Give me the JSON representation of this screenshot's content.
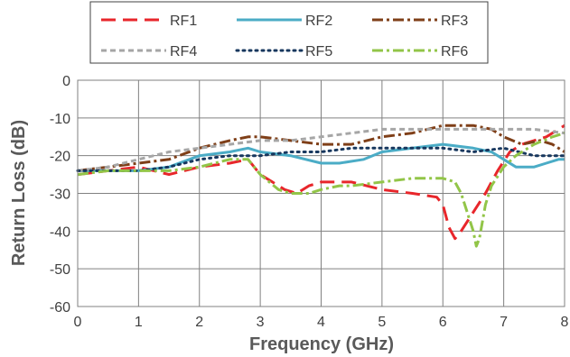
{
  "chart_data": {
    "type": "line",
    "title": "",
    "xlabel": "Frequency (GHz)",
    "ylabel": "Return Loss (dB)",
    "xlim": [
      0,
      8
    ],
    "ylim": [
      -60,
      0
    ],
    "xticks": [
      "0",
      "1",
      "2",
      "3",
      "4",
      "5",
      "6",
      "7",
      "8"
    ],
    "yticks": [
      "0",
      "-10",
      "-20",
      "-30",
      "-40",
      "-50",
      "-60"
    ],
    "grid": true,
    "legend_position": "top",
    "series": [
      {
        "name": "RF1",
        "color": "#e8262b",
        "dash": "long-dash",
        "x": [
          0,
          0.5,
          1,
          1.5,
          2,
          2.5,
          2.8,
          3.0,
          3.2,
          3.4,
          3.6,
          3.8,
          4.0,
          4.2,
          4.5,
          5.0,
          5.5,
          5.9,
          6.0,
          6.1,
          6.2,
          6.3,
          6.5,
          6.7,
          6.9,
          7.1,
          7.3,
          7.5,
          7.7,
          7.9,
          8.0
        ],
        "y": [
          -25,
          -24,
          -23,
          -25,
          -23,
          -22,
          -21,
          -25,
          -27,
          -29,
          -30,
          -28,
          -27,
          -27,
          -27,
          -29,
          -30,
          -31,
          -33,
          -39,
          -42,
          -40,
          -35,
          -30,
          -24,
          -19,
          -17,
          -16,
          -15,
          -13,
          -12
        ]
      },
      {
        "name": "RF2",
        "color": "#4bacc6",
        "dash": "solid",
        "x": [
          0,
          0.5,
          1,
          1.5,
          2,
          2.5,
          2.8,
          3.0,
          3.5,
          4.0,
          4.3,
          4.7,
          5.0,
          5.5,
          6.0,
          6.5,
          6.8,
          7.0,
          7.2,
          7.5,
          7.7,
          7.9,
          8.0
        ],
        "y": [
          -24,
          -24,
          -24,
          -23,
          -20,
          -19,
          -18,
          -19,
          -20,
          -22,
          -22,
          -21,
          -19,
          -18,
          -17,
          -18,
          -19,
          -21,
          -23,
          -23,
          -22,
          -21,
          -21
        ]
      },
      {
        "name": "RF3",
        "color": "#7f3f18",
        "dash": "dash-dot",
        "x": [
          0,
          0.5,
          1,
          1.5,
          2,
          2.5,
          2.8,
          3.0,
          3.5,
          4.0,
          4.5,
          5.0,
          5.5,
          6.0,
          6.5,
          6.8,
          7.0,
          7.3,
          7.6,
          7.8,
          8.0
        ],
        "y": [
          -24,
          -23,
          -22,
          -21,
          -18,
          -16,
          -15,
          -15,
          -16,
          -17,
          -17,
          -15,
          -14,
          -12,
          -12,
          -13,
          -15,
          -17,
          -16,
          -17,
          -19
        ]
      },
      {
        "name": "RF4",
        "color": "#a6a6a6",
        "dash": "short-dash",
        "x": [
          0,
          0.5,
          1,
          1.5,
          2,
          2.5,
          3.0,
          3.5,
          4.0,
          4.5,
          5.0,
          5.5,
          6.0,
          6.5,
          7.0,
          7.5,
          8.0
        ],
        "y": [
          -24,
          -23,
          -21,
          -19,
          -18,
          -17,
          -16,
          -16,
          -15,
          -14,
          -13,
          -13,
          -13,
          -13,
          -13,
          -13,
          -14
        ]
      },
      {
        "name": "RF5",
        "color": "#17375e",
        "dash": "dot",
        "x": [
          0,
          0.5,
          1,
          1.5,
          2,
          2.5,
          3.0,
          3.5,
          4.0,
          4.5,
          5.0,
          5.5,
          6.0,
          6.5,
          7.0,
          7.5,
          8.0
        ],
        "y": [
          -24,
          -24,
          -24,
          -23,
          -21,
          -20,
          -20,
          -19,
          -19,
          -18,
          -18,
          -18,
          -18,
          -19,
          -18,
          -20,
          -20
        ]
      },
      {
        "name": "RF6",
        "color": "#92c548",
        "dash": "dash-dot",
        "x": [
          0,
          0.5,
          1,
          1.5,
          2,
          2.5,
          2.8,
          3.0,
          3.3,
          3.5,
          3.8,
          4.0,
          4.3,
          4.5,
          5.0,
          5.5,
          6.0,
          6.2,
          6.3,
          6.4,
          6.5,
          6.55,
          6.6,
          6.7,
          6.8,
          7.0,
          7.2,
          7.5,
          7.8,
          8.0
        ],
        "y": [
          -25,
          -24,
          -24,
          -24,
          -23,
          -21,
          -21,
          -25,
          -29,
          -30,
          -30,
          -29,
          -28,
          -28,
          -27,
          -26,
          -26,
          -27,
          -30,
          -35,
          -40,
          -44,
          -42,
          -33,
          -28,
          -23,
          -20,
          -17,
          -15,
          -14
        ]
      }
    ]
  }
}
